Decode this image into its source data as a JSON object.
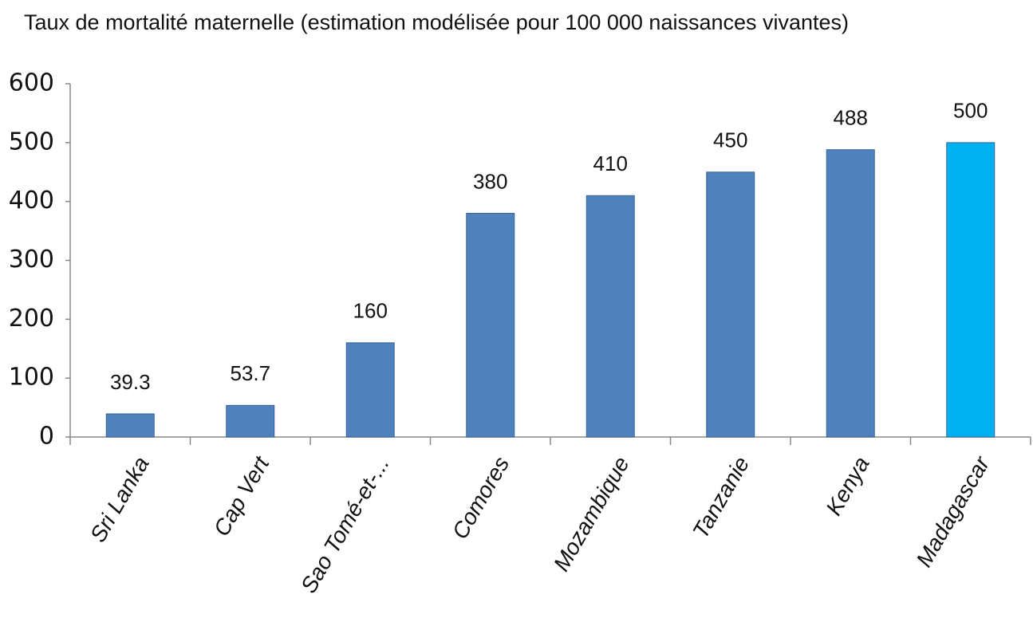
{
  "chart_data": {
    "type": "bar",
    "title": "Taux de mortalité maternelle (estimation modélisée pour 100 000 naissances vivantes)",
    "categories": [
      "Sri Lanka",
      "Cap Vert",
      "Sao Tomé-et-...",
      "Comores",
      "Mozambique",
      "Tanzanie",
      "Kenya",
      "Madagascar"
    ],
    "values": [
      39.3,
      53.7,
      160,
      380,
      410,
      450,
      488,
      500
    ],
    "colors": [
      "#4f81bd",
      "#4f81bd",
      "#4f81bd",
      "#4f81bd",
      "#4f81bd",
      "#4f81bd",
      "#4f81bd",
      "#00b0f0"
    ],
    "ylim": [
      0,
      600
    ],
    "yticks": [
      0,
      100,
      200,
      300,
      400,
      500,
      600
    ],
    "grid": false
  }
}
